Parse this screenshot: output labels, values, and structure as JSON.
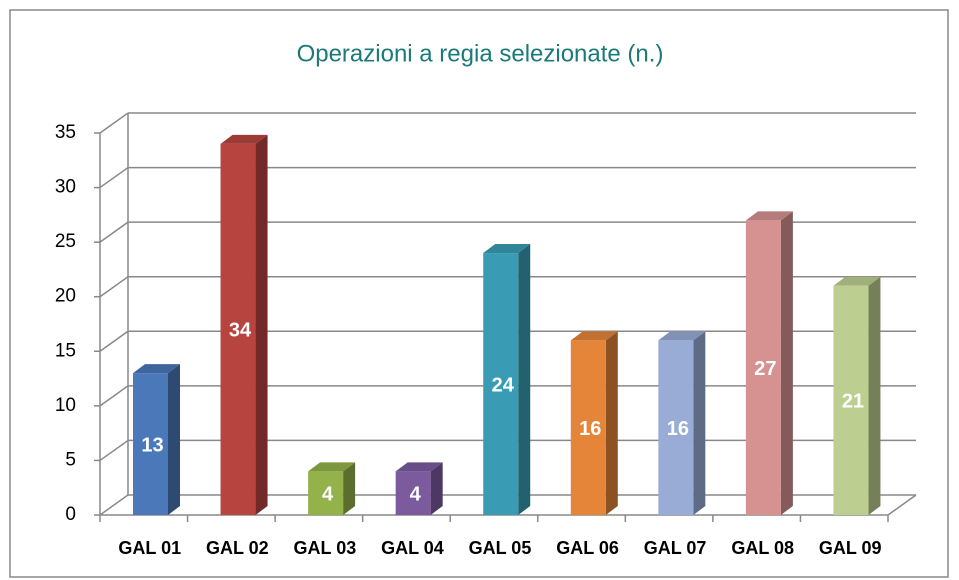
{
  "chart_data": {
    "type": "bar3d",
    "title": "Operazioni a regia selezionate (n.)",
    "categories": [
      "GAL 01",
      "GAL 02",
      "GAL 03",
      "GAL 04",
      "GAL 05",
      "GAL 06",
      "GAL 07",
      "GAL 08",
      "GAL 09"
    ],
    "values": [
      13,
      34,
      4,
      4,
      24,
      16,
      16,
      27,
      21
    ],
    "colors": [
      "#4a78b8",
      "#b84440",
      "#93b24a",
      "#7b5a9e",
      "#3a9cb4",
      "#e4853a",
      "#98acd6",
      "#d59291",
      "#bccf90"
    ],
    "ylim": [
      0,
      35
    ],
    "yticks": [
      0,
      5,
      10,
      15,
      20,
      25,
      30,
      35
    ],
    "grid": true
  }
}
